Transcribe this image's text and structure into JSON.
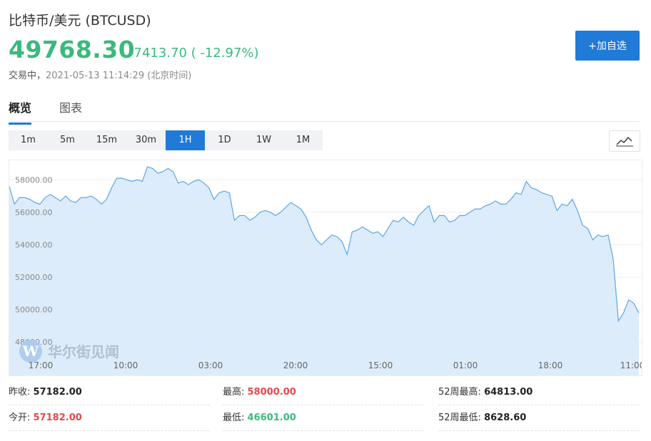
{
  "header": {
    "title": "比特币/美元  (BTCUSD)",
    "price": "49768.30",
    "change": "-7413.70 ( -12.97%)",
    "status": "交易中，",
    "timestamp": "2021-05-13 11:14:29 (北京时间)",
    "add_button": "+加自选"
  },
  "tabs": [
    "概览",
    "图表"
  ],
  "periods": [
    "1m",
    "5m",
    "15m",
    "30m",
    "1H",
    "1D",
    "1W",
    "1M"
  ],
  "active_period": "1H",
  "watermark": "华尔街见闻",
  "colors": {
    "up": "#e8474a",
    "down": "#3bb97d",
    "accent": "#1f7ad8",
    "line": "#5aa7e6",
    "fill": "#ddecfb"
  },
  "chart_data": {
    "type": "area",
    "x_ticks": [
      "17:00",
      "10:00",
      "03:00",
      "20:00",
      "15:00",
      "01:00",
      "18:00",
      "11:00"
    ],
    "y_ticks": [
      "58000.00",
      "56000.00",
      "54000.00",
      "52000.00",
      "50000.00",
      "48000.00"
    ],
    "ylim": [
      47000,
      59200
    ],
    "grid": true,
    "values": [
      57600,
      56500,
      56900,
      56900,
      56800,
      56600,
      56500,
      56900,
      57100,
      56900,
      56700,
      57000,
      56700,
      56600,
      56900,
      56900,
      57000,
      56800,
      56500,
      56800,
      57500,
      58100,
      58100,
      58000,
      57900,
      58000,
      57900,
      58800,
      58700,
      58400,
      58500,
      58700,
      58500,
      57800,
      57900,
      57700,
      57900,
      58000,
      57800,
      57500,
      56800,
      57200,
      57300,
      57200,
      55500,
      55800,
      55800,
      55500,
      55700,
      56000,
      56100,
      56000,
      55800,
      56000,
      56300,
      56600,
      56400,
      56200,
      55700,
      54900,
      54300,
      54000,
      54300,
      54600,
      54500,
      54200,
      53400,
      54800,
      54900,
      55100,
      54900,
      54700,
      54800,
      54500,
      55000,
      55500,
      55400,
      55700,
      55400,
      55200,
      55800,
      56100,
      56400,
      55400,
      55800,
      55800,
      55400,
      55500,
      55800,
      55800,
      56000,
      56200,
      56200,
      56400,
      56500,
      56700,
      56500,
      56500,
      56800,
      57200,
      57100,
      57900,
      57500,
      57400,
      57200,
      57100,
      57000,
      56100,
      56500,
      56400,
      56800,
      56100,
      55200,
      55000,
      54300,
      54600,
      54500,
      54600,
      53100,
      49300,
      49800,
      50600,
      50400,
      49800
    ]
  },
  "stats": [
    {
      "label": "昨收:",
      "value": "57182.00",
      "tone": "dark"
    },
    {
      "label": "最高:",
      "value": "58000.00",
      "tone": "red"
    },
    {
      "label": "52周最高:",
      "value": "64813.00",
      "tone": "dark"
    },
    {
      "label": "今开:",
      "value": "57182.00",
      "tone": "red"
    },
    {
      "label": "最低:",
      "value": "46601.00",
      "tone": "green"
    },
    {
      "label": "52周最低:",
      "value": "8628.60",
      "tone": "dark"
    }
  ]
}
